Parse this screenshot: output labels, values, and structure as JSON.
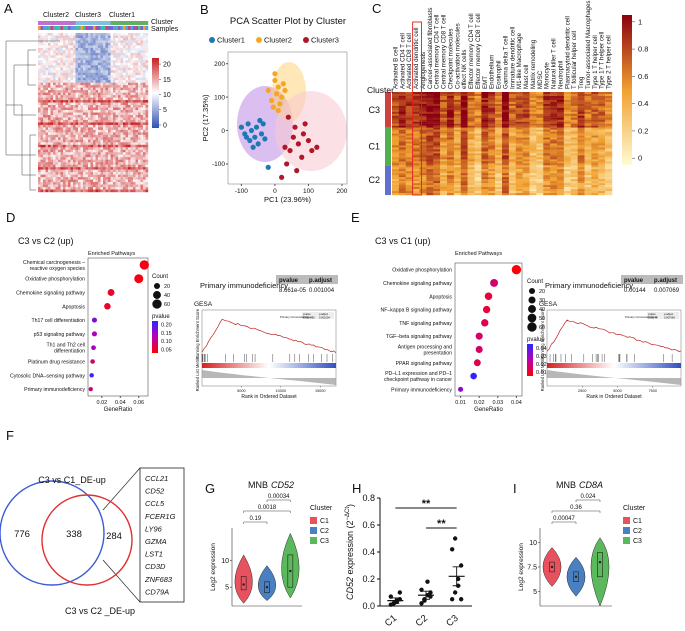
{
  "chart_data": [
    {
      "type": "heatmap",
      "label": "A",
      "column_groups": [
        "Cluster2",
        "Cluster3",
        "Cluster1"
      ],
      "legend_labels": [
        "Cluster",
        "Samples"
      ],
      "clim": [
        -1,
        22
      ],
      "colorbar_ticks": [
        20,
        15,
        10,
        5,
        0
      ]
    },
    {
      "type": "scatter",
      "label": "B",
      "title": "PCA Scatter Plot by Cluster",
      "xlabel": "PC1 (23.96%)",
      "ylabel": "PC2 (17.35%)",
      "xlim": [
        -140,
        215
      ],
      "ylim": [
        -160,
        235
      ],
      "xticks": [
        -100,
        0,
        100,
        200
      ],
      "yticks": [
        -100,
        0,
        100,
        200
      ],
      "series": [
        {
          "name": "Cluster1",
          "color": "#1f77b4",
          "x": [
            -100,
            -90,
            -80,
            -75,
            -70,
            -60,
            -55,
            -50,
            -40,
            -35,
            -65,
            -85,
            -45,
            -30,
            -20
          ],
          "y": [
            10,
            -10,
            20,
            -30,
            0,
            -20,
            10,
            -40,
            -10,
            20,
            -50,
            -20,
            30,
            -25,
            -110
          ]
        },
        {
          "name": "Cluster2",
          "color": "#f5a623",
          "x": [
            -20,
            -10,
            0,
            5,
            10,
            15,
            20,
            25,
            -5,
            30,
            10,
            0
          ],
          "y": [
            120,
            90,
            150,
            110,
            130,
            80,
            100,
            140,
            70,
            120,
            60,
            170
          ]
        },
        {
          "name": "Cluster3",
          "color": "#b0182a",
          "x": [
            20,
            35,
            45,
            55,
            60,
            70,
            80,
            90,
            100,
            110,
            65,
            40,
            30,
            85,
            125
          ],
          "y": [
            -140,
            -100,
            -60,
            -20,
            10,
            -40,
            -80,
            20,
            -30,
            -60,
            -120,
            40,
            -50,
            -10,
            -50
          ]
        }
      ]
    },
    {
      "type": "heatmap",
      "label": "C",
      "row_title": "Cluster",
      "rows": [
        "C3",
        "C1",
        "C2"
      ],
      "columns": [
        "Activated B cell",
        "Activated CD4 T cell",
        "Activated CD8 T cell",
        "Activated dendritic cell",
        "Angiogenesis",
        "Cancer-associated fibroblasts",
        "Central memory CD4 T cell",
        "Central memory CD8 T cell",
        "Checkpoint molecules",
        "Co-activation molecules",
        "effect NK cells",
        "Effector memory CD4 T cell",
        "Effector memory CD8 T cell",
        "EMT",
        "Endothelium",
        "Eosinophil",
        "Gamma delta T cell",
        "Immature dendritic cell",
        "M1-like Macrophage",
        "Mast cell",
        "Matrix remodeling",
        "MDSC",
        "Monocyte",
        "Natural killer T cell",
        "Neutrophil",
        "Plasmacytoid dendritic cell",
        "T follicular helper cell",
        "Treg",
        "Tumor-associated Macrophages",
        "Type 1 T helper cell",
        "Type 17 T helper cell",
        "Type 2 T helper cell"
      ],
      "highlight_column": 3,
      "clim": [
        -0.05,
        1.05
      ],
      "colorbar_ticks": [
        1,
        0.8,
        0.6,
        0.4,
        0.2,
        0
      ]
    },
    {
      "type": "dot",
      "label": "D",
      "title": "C3 vs C2 (up)",
      "subtitle": "Enriched Pathways",
      "xlabel": "GeneRatio",
      "categories": [
        [
          "Chemical carcinogenesis –",
          "reactive oxygen species"
        ],
        "Oxidative phosphorylation",
        "Chemokine signaling pathway",
        "Apoptosis",
        "Th17 cell differentiation",
        "p53 signaling pathway",
        [
          "Th1 and Th2 cell",
          "differentiation"
        ],
        "Platinum drug resistance",
        "Cytosolic DNA–sensing pathway",
        "Primary immunodeficiency"
      ],
      "values": [
        0.066,
        0.06,
        0.03,
        0.026,
        0.012,
        0.012,
        0.011,
        0.01,
        0.009,
        0.008
      ],
      "counts": [
        60,
        55,
        28,
        24,
        12,
        12,
        10,
        9,
        8,
        7
      ],
      "pvalues": [
        0.04,
        0.04,
        0.05,
        0.05,
        0.17,
        0.12,
        0.13,
        0.08,
        0.21,
        0.09
      ],
      "xlim": [
        0.005,
        0.07
      ],
      "xticks": [
        0.02,
        0.04,
        0.06
      ],
      "size_legend": {
        "title": "Count",
        "values": [
          20,
          40,
          60
        ]
      },
      "color_legend": {
        "title": "pvalue",
        "clim": [
          0.03,
          0.22
        ],
        "ticks": [
          {
            "value": 0.2,
            "label": "0.20"
          },
          0.15,
          {
            "value": 0.1,
            "label": "0.10"
          },
          0.05
        ]
      },
      "gsea": {
        "pathway": "Primary immunodeficiency",
        "headers": [
          "pvalue",
          "p.adjust"
        ],
        "cells": [
          "8.661e-05",
          "0.001004"
        ],
        "title": "GESA",
        "ylabel_top": "Running Enrichment Score",
        "ylabel_bottom": "Ranked List Metric",
        "xlabel": "Rank in Ordered Dataset",
        "xlim": [
          0,
          17000
        ],
        "xticks": [
          5000,
          10000,
          15000
        ]
      }
    },
    {
      "type": "dot",
      "label": "E",
      "title": "C3 vs C1 (up)",
      "subtitle": "Enriched Pathways",
      "xlabel": "GeneRatio",
      "categories": [
        "Oxidative phosphorylation",
        "Chemokine signaling pathway",
        "Apoptosis",
        "NF–kappa B signaling pathway",
        "TNF signaling pathway",
        "TGF–beta signaling pathway",
        [
          "Antigen processing and",
          "presentation"
        ],
        "PPAR signaling pathway",
        [
          "PD–L1 expression and PD–1",
          "checkpoint pathway in cancer"
        ],
        "Primary immunodeficiency"
      ],
      "values": [
        0.04,
        0.028,
        0.025,
        0.024,
        0.023,
        0.02,
        0.02,
        0.019,
        0.017,
        0.01
      ],
      "counts": [
        60,
        40,
        35,
        33,
        33,
        30,
        30,
        28,
        25,
        12
      ],
      "pvalues": [
        0.006,
        0.016,
        0.011,
        0.011,
        0.013,
        0.016,
        0.016,
        0.013,
        0.044,
        0.03
      ],
      "xlim": [
        0.007,
        0.043
      ],
      "xticks": [
        0.01,
        0.02,
        0.03,
        0.04
      ],
      "size_legend": {
        "title": "Count",
        "values": [
          20,
          30,
          40,
          50,
          60
        ]
      },
      "color_legend": {
        "title": "pvalue",
        "clim": [
          0.005,
          0.045
        ],
        "ticks": [
          0.04,
          0.03,
          0.02,
          0.01
        ]
      },
      "gsea": {
        "pathway": "Primary immunodeficiency",
        "headers": [
          "pvalue",
          "p.adjust"
        ],
        "cells": [
          "0.00144",
          "0.007069"
        ],
        "title": "GESA",
        "ylabel_top": "Running Enrichment Score",
        "ylabel_bottom": "Ranked List Metric",
        "xlabel": "Rank in Ordered Dataset",
        "xlim": [
          0,
          9500
        ],
        "xticks": [
          2500,
          5000,
          7500
        ]
      }
    },
    {
      "type": "venn",
      "label": "F",
      "sets": [
        {
          "name": "C3 vs C1_DE-up",
          "color": "#3b5bd6"
        },
        {
          "name": "C3 vs C2 _DE-up",
          "color": "#e03030"
        }
      ],
      "values": [
        776,
        338,
        284
      ],
      "genes": [
        "CCL21",
        "CD52",
        "CCL5",
        "FCER1G",
        "LY96",
        "GZMA",
        "LST1",
        "CD3D",
        "ZNF683",
        "CD79A"
      ]
    },
    {
      "type": "violin",
      "label": "G",
      "title": "MNB",
      "title_gene": "CD52",
      "ylabel": "Log2 expression",
      "ylim": [
        1.5,
        16
      ],
      "yticks": [
        5,
        10
      ],
      "legend_title": "Cluster",
      "series": [
        {
          "name": "C1",
          "color": "#e8525f",
          "min": 2,
          "q1": 4.5,
          "median": 5.5,
          "q3": 7,
          "max": 11
        },
        {
          "name": "C2",
          "color": "#4a7fc0",
          "min": 2.5,
          "q1": 4,
          "median": 5,
          "q3": 6,
          "max": 9
        },
        {
          "name": "C3",
          "color": "#5cb85c",
          "min": 3,
          "q1": 5,
          "median": 8,
          "q3": 11,
          "max": 15
        }
      ],
      "comparisons": [
        "0.19",
        "0.0018",
        "0.00034"
      ]
    },
    {
      "type": "strip",
      "label": "H",
      "ylabel": [
        "CD52",
        " expression (2",
        "−ΔCt",
        ")"
      ],
      "categories": [
        "C1",
        "C2",
        "C3"
      ],
      "values": [
        0.04,
        0.08,
        0.22
      ],
      "errors": [
        0.02,
        0.03,
        0.07
      ],
      "points": [
        [
          0.01,
          0.02,
          0.03,
          0.05,
          0.07,
          0.02,
          0.04,
          0.1
        ],
        [
          0.02,
          0.05,
          0.08,
          0.1,
          0.12,
          0.04,
          0.18,
          0.07
        ],
        [
          0.05,
          0.1,
          0.2,
          0.3,
          0.42,
          0.5,
          0.15,
          0.05
        ]
      ],
      "ylim": [
        0,
        0.8
      ],
      "yticks": [
        {
          "value": 0,
          "label": "0.0"
        },
        0.2,
        0.4,
        0.6,
        0.8
      ],
      "annotations": [
        "**",
        "**"
      ]
    },
    {
      "type": "violin",
      "label": "I",
      "title": "MNB",
      "title_gene": "CD8A",
      "ylabel": "Log2 expression",
      "ylim": [
        3.5,
        11.5
      ],
      "yticks": [
        5,
        7.5,
        10
      ],
      "legend_title": "Cluster",
      "series": [
        {
          "name": "C1",
          "color": "#e8525f",
          "min": 5.5,
          "q1": 7,
          "median": 7.5,
          "q3": 8,
          "max": 9.5
        },
        {
          "name": "C2",
          "color": "#4a7fc0",
          "min": 4.5,
          "q1": 6,
          "median": 6.5,
          "q3": 7,
          "max": 8.5
        },
        {
          "name": "C3",
          "color": "#5cb85c",
          "min": 3.5,
          "q1": 6.5,
          "median": 8,
          "q3": 9,
          "max": 10.5
        }
      ],
      "comparisons": [
        "0.00047",
        "0.36",
        "0.024"
      ]
    }
  ]
}
